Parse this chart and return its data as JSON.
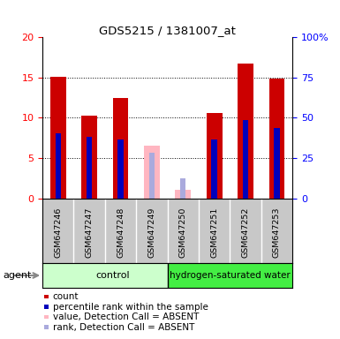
{
  "title": "GDS5215 / 1381007_at",
  "samples": [
    "GSM647246",
    "GSM647247",
    "GSM647248",
    "GSM647249",
    "GSM647250",
    "GSM647251",
    "GSM647252",
    "GSM647253"
  ],
  "red_values": [
    15.1,
    10.3,
    12.5,
    null,
    null,
    10.6,
    16.7,
    14.9
  ],
  "blue_values": [
    8.1,
    7.6,
    7.3,
    null,
    null,
    7.3,
    9.7,
    8.7
  ],
  "pink_values": [
    null,
    null,
    null,
    6.5,
    1.1,
    null,
    null,
    null
  ],
  "lavender_values": [
    null,
    null,
    null,
    5.7,
    2.5,
    null,
    null,
    null
  ],
  "ylim": [
    0,
    20
  ],
  "y_ticks": [
    0,
    5,
    10,
    15,
    20
  ],
  "y2_ticks": [
    0,
    25,
    50,
    75,
    100
  ],
  "y2_labels": [
    "0",
    "25",
    "50",
    "75",
    "100%"
  ],
  "bar_width": 0.5,
  "thin_bar_width": 0.18,
  "red_color": "#CC0000",
  "blue_color": "#0000BB",
  "pink_color": "#FFB6C1",
  "lavender_color": "#AAAADD",
  "tick_bg": "#C8C8C8",
  "control_color": "#CCFFCC",
  "hydrogen_color": "#44EE44",
  "legend_items": [
    {
      "label": "count",
      "color": "#CC0000"
    },
    {
      "label": "percentile rank within the sample",
      "color": "#0000BB"
    },
    {
      "label": "value, Detection Call = ABSENT",
      "color": "#FFB6C1"
    },
    {
      "label": "rank, Detection Call = ABSENT",
      "color": "#AAAADD"
    }
  ],
  "gridline_y": [
    5,
    10,
    15
  ],
  "n_control": 4,
  "n_samples": 8
}
